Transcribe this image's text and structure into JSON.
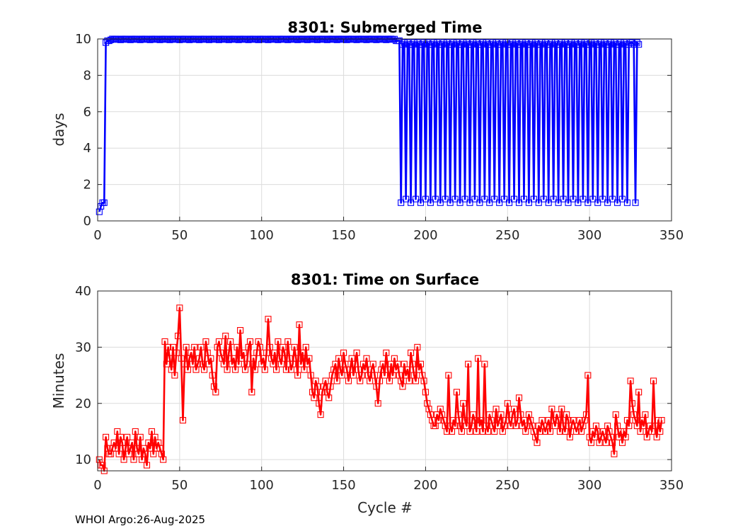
{
  "footer": {
    "text": "WHOI Argo:26-Aug-2025"
  },
  "chart_data": [
    {
      "type": "line",
      "title": "8301: Submerged Time",
      "xlabel": "",
      "ylabel": "days",
      "xlim": [
        0,
        350
      ],
      "ylim": [
        0,
        10
      ],
      "xticks": [
        0,
        50,
        100,
        150,
        200,
        250,
        300,
        350
      ],
      "yticks": [
        0,
        2,
        4,
        6,
        8,
        10
      ],
      "grid": true,
      "marker": "square",
      "series": [
        {
          "color": "#0000ff",
          "segments": [
            {
              "x_start": 1,
              "values": [
                0.5,
                0.8,
                1.0,
                1.0,
                9.8,
                9.9,
                9.9
              ]
            },
            {
              "x_start": 8,
              "x_end": 184,
              "pattern": [
                9.95,
                10.0,
                9.98,
                10.0,
                9.97,
                9.99
              ],
              "tail": 9.9
            },
            {
              "x_start": 185,
              "x_end": 325,
              "alternating_low": [
                1.0,
                1.2
              ],
              "alternating_high": [
                9.7,
                9.8
              ],
              "period": 3
            },
            {
              "x_start": 326,
              "values": [
                9.8,
                9.7,
                1.0,
                9.8,
                9.7
              ]
            }
          ]
        }
      ]
    },
    {
      "type": "line",
      "title": "8301: Time on Surface",
      "xlabel": "Cycle #",
      "ylabel": "Minutes",
      "xlim": [
        0,
        350
      ],
      "ylim": [
        8,
        40
      ],
      "xticks": [
        0,
        50,
        100,
        150,
        200,
        250,
        300,
        350
      ],
      "yticks": [
        10,
        20,
        30,
        40
      ],
      "grid": true,
      "marker": "square",
      "series": [
        {
          "color": "#ff0000",
          "x_start": 1,
          "values": [
            10,
            9,
            9,
            8,
            14,
            12,
            11,
            11,
            12,
            13,
            12,
            15,
            11,
            14,
            13,
            10,
            12,
            14,
            11,
            12,
            13,
            10,
            15,
            12,
            11,
            14,
            10,
            12,
            11,
            9,
            13,
            12,
            15,
            11,
            14,
            12,
            13,
            12,
            11,
            10,
            31,
            27,
            30,
            28,
            26,
            30,
            25,
            29,
            32,
            37,
            28,
            17,
            27,
            30,
            26,
            28,
            29,
            27,
            30,
            26,
            27,
            28,
            30,
            27,
            26,
            31,
            29,
            27,
            28,
            25,
            23,
            22,
            30,
            31,
            29,
            28,
            27,
            32,
            26,
            29,
            31,
            27,
            28,
            26,
            30,
            27,
            33,
            28,
            29,
            26,
            27,
            30,
            31,
            22,
            28,
            26,
            29,
            31,
            30,
            27,
            28,
            26,
            29,
            35,
            30,
            28,
            27,
            29,
            26,
            31,
            28,
            27,
            30,
            29,
            26,
            31,
            28,
            26,
            27,
            30,
            28,
            25,
            34,
            27,
            29,
            26,
            30,
            27,
            28,
            25,
            22,
            21,
            24,
            23,
            20,
            18,
            22,
            23,
            24,
            22,
            21,
            23,
            25,
            26,
            27,
            24,
            28,
            26,
            25,
            29,
            27,
            26,
            24,
            26,
            28,
            25,
            27,
            29,
            26,
            24,
            25,
            27,
            26,
            28,
            25,
            24,
            26,
            27,
            25,
            23,
            20,
            24,
            26,
            27,
            25,
            29,
            26,
            24,
            27,
            25,
            28,
            26,
            27,
            25,
            24,
            23,
            27,
            25,
            26,
            24,
            29,
            27,
            25,
            24,
            30,
            26,
            27,
            25,
            24,
            22,
            20,
            19,
            18,
            17,
            16,
            16,
            18,
            17,
            19,
            18,
            17,
            16,
            15,
            25,
            16,
            15,
            17,
            16,
            22,
            18,
            16,
            15,
            20,
            17,
            16,
            27,
            15,
            16,
            18,
            17,
            15,
            28,
            16,
            17,
            15,
            27,
            16,
            15,
            18,
            17,
            16,
            15,
            19,
            16,
            17,
            18,
            15,
            16,
            17,
            20,
            17,
            16,
            18,
            19,
            16,
            17,
            21,
            18,
            16,
            17,
            15,
            16,
            18,
            17,
            16,
            15,
            14,
            13,
            16,
            15,
            17,
            16,
            15,
            16,
            17,
            15,
            19,
            17,
            16,
            18,
            17,
            15,
            19,
            16,
            15,
            18,
            17,
            14,
            16,
            17,
            16,
            15,
            16,
            17,
            15,
            16,
            17,
            18,
            25,
            14,
            13,
            15,
            14,
            16,
            15,
            13,
            14,
            15,
            14,
            13,
            16,
            15,
            14,
            13,
            11,
            18,
            16,
            14,
            15,
            13,
            15,
            14,
            17,
            16,
            24,
            20,
            18,
            17,
            16,
            22,
            15,
            17,
            16,
            18,
            14,
            15,
            16,
            15,
            24,
            16,
            14,
            17,
            15,
            17
          ]
        }
      ]
    }
  ]
}
